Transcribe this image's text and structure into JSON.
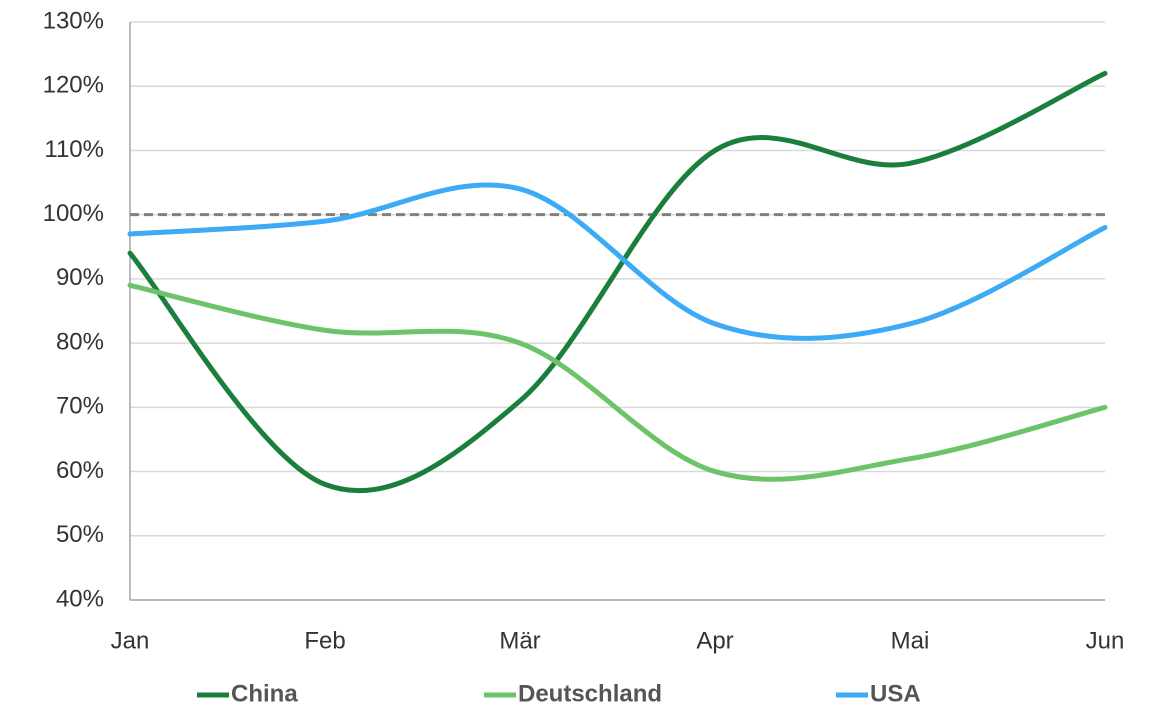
{
  "chart_data": {
    "type": "line",
    "categories": [
      "Jan",
      "Feb",
      "Mär",
      "Apr",
      "Mai",
      "Jun"
    ],
    "series": [
      {
        "name": "China",
        "color": "#1a7f3c",
        "values": [
          94,
          58,
          71,
          110,
          108,
          122
        ]
      },
      {
        "name": "Deutschland",
        "color": "#6cc36a",
        "values": [
          89,
          82,
          80,
          60,
          62,
          70
        ]
      },
      {
        "name": "USA",
        "color": "#3daaf5",
        "values": [
          97,
          99,
          104,
          83,
          83,
          98
        ]
      }
    ],
    "ylim": [
      40,
      130
    ],
    "yticks": [
      {
        "value": 40,
        "label": "40%"
      },
      {
        "value": 50,
        "label": "50%"
      },
      {
        "value": 60,
        "label": "60%"
      },
      {
        "value": 70,
        "label": "70%"
      },
      {
        "value": 80,
        "label": "80%"
      },
      {
        "value": 90,
        "label": "90%"
      },
      {
        "value": 100,
        "label": "100%"
      },
      {
        "value": 110,
        "label": "110%"
      },
      {
        "value": 120,
        "label": "120%"
      },
      {
        "value": 130,
        "label": "130%"
      }
    ],
    "grid": true,
    "smooth": true,
    "reference_line": {
      "value": 100,
      "color": "#808080",
      "dashed": true
    },
    "legend": "bottom"
  }
}
